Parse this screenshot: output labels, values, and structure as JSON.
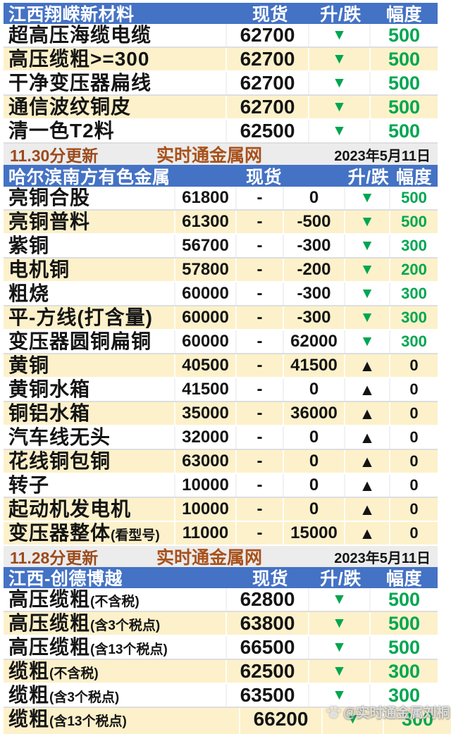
{
  "colors": {
    "header_blue": "#4472c4",
    "row_cream": "#fcf1ca",
    "drop_green": "#00a651",
    "rise_black": "#141414",
    "time_brown": "#9c4a1c",
    "site_orange": "#a8511b",
    "footer_gray": "#ececec"
  },
  "glyphs": {
    "down": "▼",
    "up": "▲"
  },
  "sections": [
    {
      "title": "江西翔嵘新材料",
      "layout": "4col",
      "columns": {
        "price": "现货",
        "change": "升/跌",
        "range": "幅度"
      },
      "rows": [
        {
          "name": "超高压海缆电缆",
          "note": "",
          "price": "62700",
          "dir": "down",
          "delta": "500",
          "alt": false
        },
        {
          "name": "高压缆粗>=300",
          "note": "",
          "price": "62700",
          "dir": "down",
          "delta": "500",
          "alt": true
        },
        {
          "name": "干净变压器扁线",
          "note": "",
          "price": "62700",
          "dir": "down",
          "delta": "500",
          "alt": false
        },
        {
          "name": "通信波纹铜皮",
          "note": "",
          "price": "62700",
          "dir": "down",
          "delta": "500",
          "alt": true
        },
        {
          "name": "清一色T2料",
          "note": "",
          "price": "62500",
          "dir": "down",
          "delta": "500",
          "alt": false
        }
      ],
      "footer": {
        "time": "11.30分更新",
        "site": "实时通金属网",
        "date": "2023年5月11日"
      }
    },
    {
      "title": "哈尔滨南方有色金属",
      "layout": "6col",
      "columns": {
        "price": "现货",
        "change": "升/跌",
        "range": "幅度"
      },
      "rows": [
        {
          "name": "亮铜合股",
          "note": "",
          "price1": "61800",
          "dash": "-",
          "price2": "0",
          "dir": "down",
          "delta": "500",
          "alt": false
        },
        {
          "name": "亮铜普料",
          "note": "",
          "price1": "61300",
          "dash": "-",
          "price2": "-500",
          "dir": "down",
          "delta": "500",
          "alt": true
        },
        {
          "name": "紫铜",
          "note": "",
          "price1": "56700",
          "dash": "-",
          "price2": "-300",
          "dir": "down",
          "delta": "300",
          "alt": false
        },
        {
          "name": "电机铜",
          "note": "",
          "price1": "57800",
          "dash": "-",
          "price2": "-200",
          "dir": "down",
          "delta": "200",
          "alt": true
        },
        {
          "name": "粗烧",
          "note": "",
          "price1": "60000",
          "dash": "-",
          "price2": "-300",
          "dir": "down",
          "delta": "300",
          "alt": false
        },
        {
          "name": "平-方线(打含量)",
          "note": "",
          "price1": "60000",
          "dash": "-",
          "price2": "-300",
          "dir": "down",
          "delta": "300",
          "alt": true
        },
        {
          "name": "变压器圆铜扁铜",
          "note": "",
          "price1": "60000",
          "dash": "-",
          "price2": "62000",
          "dir": "down",
          "delta": "300",
          "alt": false
        },
        {
          "name": "黄铜",
          "note": "",
          "price1": "40500",
          "dash": "-",
          "price2": "41500",
          "dir": "up",
          "delta": "0",
          "alt": true
        },
        {
          "name": "黄铜水箱",
          "note": "",
          "price1": "41500",
          "dash": "-",
          "price2": "0",
          "dir": "up",
          "delta": "0",
          "alt": false
        },
        {
          "name": "铜铝水箱",
          "note": "",
          "price1": "35000",
          "dash": "-",
          "price2": "36000",
          "dir": "up",
          "delta": "0",
          "alt": true
        },
        {
          "name": "汽车线无头",
          "note": "",
          "price1": "32000",
          "dash": "-",
          "price2": "0",
          "dir": "up",
          "delta": "0",
          "alt": false
        },
        {
          "name": "花线铜包铜",
          "note": "",
          "price1": "63000",
          "dash": "-",
          "price2": "0",
          "dir": "up",
          "delta": "0",
          "alt": true
        },
        {
          "name": "转子",
          "note": "",
          "price1": "10000",
          "dash": "-",
          "price2": "0",
          "dir": "up",
          "delta": "0",
          "alt": false
        },
        {
          "name": "起动机发电机",
          "note": "",
          "price1": "10000",
          "dash": "-",
          "price2": "0",
          "dir": "up",
          "delta": "0",
          "alt": true
        },
        {
          "name": "变压器整体",
          "note": "(看型号)",
          "price1": "11000",
          "dash": "-",
          "price2": "15000",
          "dir": "up",
          "delta": "0",
          "alt": true
        }
      ],
      "footer": {
        "time": "11.28分更新",
        "site": "实时通金属网",
        "date": "2023年5月11日"
      }
    },
    {
      "title": "江西-创德博越",
      "layout": "4col",
      "columns": {
        "price": "现货",
        "change": "升/跌",
        "range": "幅度"
      },
      "rows": [
        {
          "name": "高压缆粗",
          "note": "(不含税)",
          "price": "62800",
          "dir": "down",
          "delta": "500",
          "alt": false
        },
        {
          "name": "高压缆粗",
          "note": "(含3个税点)",
          "price": "63800",
          "dir": "down",
          "delta": "500",
          "alt": true
        },
        {
          "name": "高压缆粗",
          "note": "(含13个税点)",
          "price": "66500",
          "dir": "down",
          "delta": "500",
          "alt": false
        },
        {
          "name": "缆粗",
          "note": "(不含税)",
          "price": "62500",
          "dir": "down",
          "delta": "300",
          "alt": true
        },
        {
          "name": "缆粗",
          "note": "(含3个税点)",
          "price": "63500",
          "dir": "down",
          "delta": "300",
          "alt": false
        },
        {
          "name": "缆粗",
          "note": "(含13个税点)",
          "price": "66200",
          "dir": "down",
          "delta": "300",
          "alt": true,
          "last": true
        }
      ]
    }
  ],
  "watermark": {
    "handle": "@实时通金属刘桐",
    "icon": "paw-icon"
  }
}
